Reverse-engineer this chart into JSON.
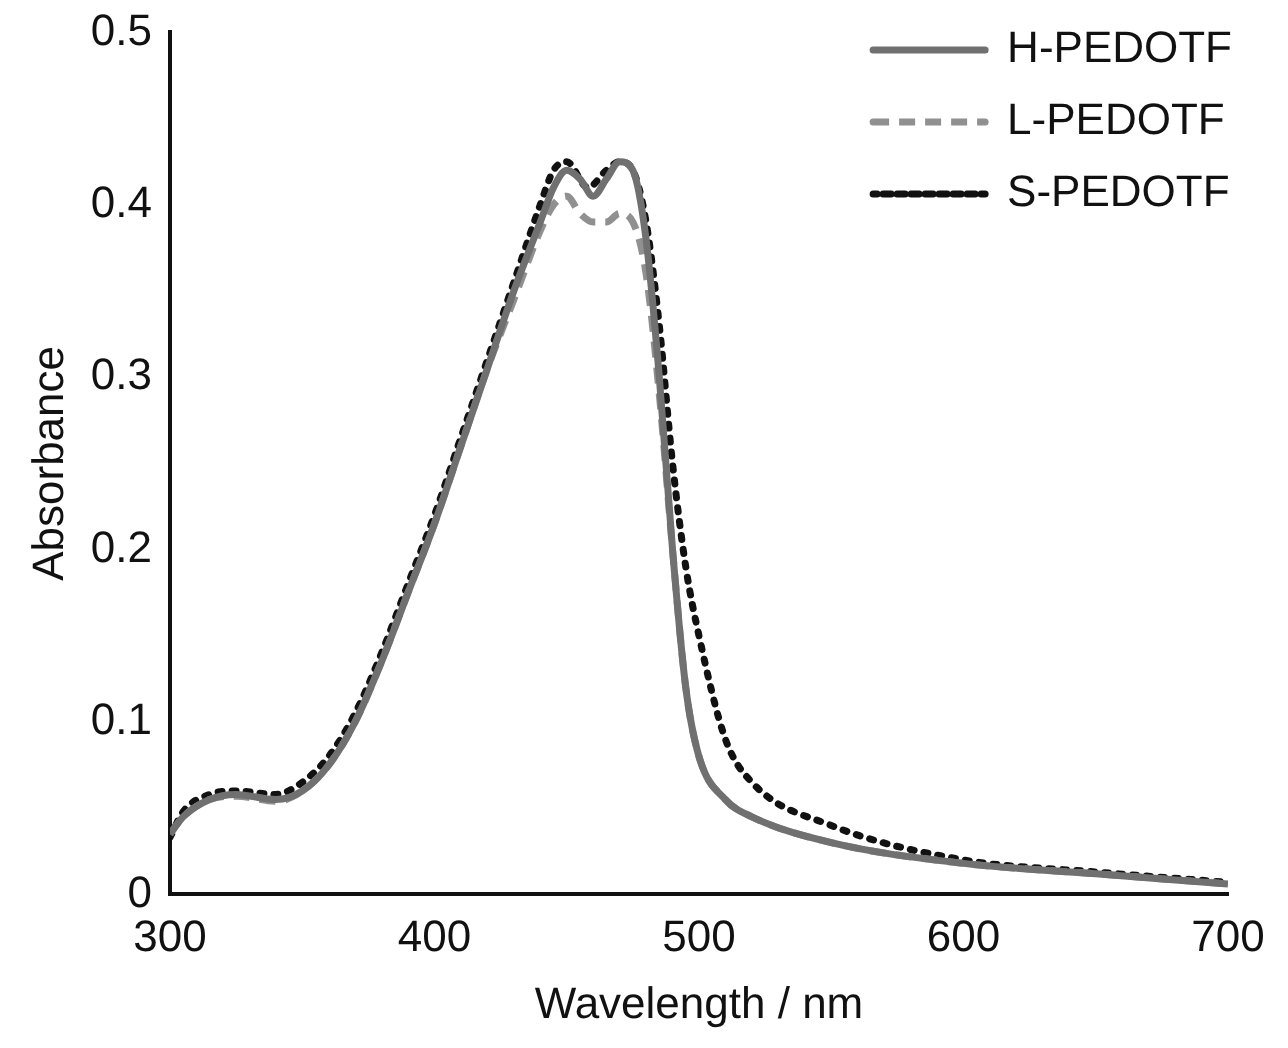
{
  "chart_data": {
    "type": "line",
    "xlabel": "Wavelength / nm",
    "ylabel": "Absorbance",
    "xlim": [
      300,
      700
    ],
    "xticks": [
      300,
      400,
      500,
      600,
      700
    ],
    "ylim": [
      0,
      0.5
    ],
    "yticks": [
      0,
      0.1,
      0.2,
      0.3,
      0.4,
      0.5
    ],
    "legend": "top right",
    "grid": false,
    "marker": "none",
    "series": [
      {
        "name": "H-PEDOTF",
        "color": "#707070",
        "line_style": "solid",
        "x": [
          300,
          305,
          315,
          325,
          340,
          350,
          360,
          370,
          380,
          390,
          400,
          410,
          420,
          430,
          440,
          445,
          450,
          455,
          460,
          465,
          470,
          475,
          480,
          485,
          490,
          495,
          500,
          510,
          520,
          550,
          600,
          650,
          700
        ],
        "values": [
          0.035,
          0.045,
          0.055,
          0.058,
          0.055,
          0.06,
          0.075,
          0.1,
          0.135,
          0.175,
          0.215,
          0.26,
          0.305,
          0.35,
          0.39,
          0.41,
          0.42,
          0.415,
          0.405,
          0.415,
          0.425,
          0.42,
          0.38,
          0.3,
          0.2,
          0.12,
          0.08,
          0.055,
          0.045,
          0.03,
          0.018,
          0.012,
          0.006
        ]
      },
      {
        "name": "L-PEDOTF",
        "color": "#909090",
        "line_style": "dashed",
        "x": [
          300,
          305,
          315,
          325,
          340,
          350,
          360,
          370,
          380,
          390,
          400,
          410,
          420,
          430,
          440,
          445,
          450,
          455,
          460,
          465,
          470,
          475,
          480,
          485,
          490,
          495,
          500,
          510,
          520,
          550,
          600,
          650,
          700
        ],
        "values": [
          0.035,
          0.045,
          0.055,
          0.057,
          0.054,
          0.06,
          0.075,
          0.1,
          0.135,
          0.175,
          0.215,
          0.26,
          0.305,
          0.345,
          0.385,
          0.4,
          0.405,
          0.395,
          0.39,
          0.39,
          0.395,
          0.39,
          0.36,
          0.29,
          0.2,
          0.12,
          0.08,
          0.055,
          0.045,
          0.03,
          0.018,
          0.012,
          0.006
        ]
      },
      {
        "name": "S-PEDOTF",
        "color": "#111111",
        "line_style": "dotted",
        "x": [
          300,
          305,
          315,
          325,
          340,
          350,
          360,
          370,
          380,
          390,
          400,
          410,
          420,
          430,
          440,
          445,
          450,
          458,
          465,
          470,
          475,
          480,
          485,
          490,
          495,
          500,
          510,
          520,
          550,
          600,
          650,
          700
        ],
        "values": [
          0.033,
          0.048,
          0.058,
          0.06,
          0.058,
          0.065,
          0.08,
          0.105,
          0.14,
          0.18,
          0.22,
          0.265,
          0.31,
          0.355,
          0.4,
          0.42,
          0.425,
          0.41,
          0.42,
          0.425,
          0.42,
          0.39,
          0.33,
          0.25,
          0.19,
          0.15,
          0.09,
          0.065,
          0.04,
          0.02,
          0.013,
          0.007
        ]
      }
    ]
  }
}
